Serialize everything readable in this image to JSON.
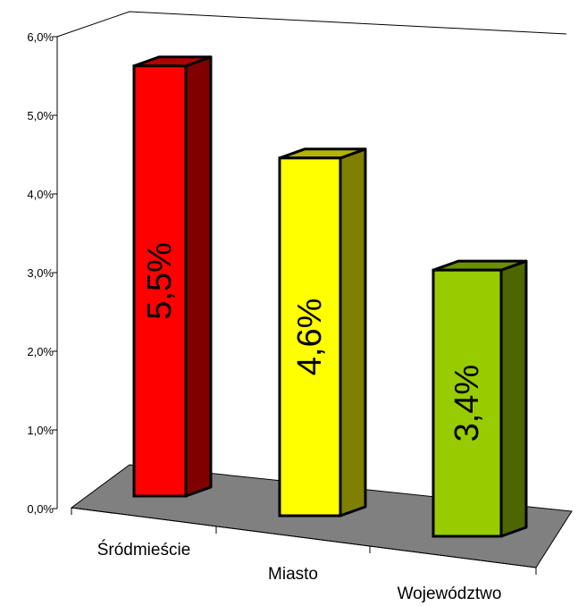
{
  "chart_data": {
    "type": "bar",
    "categories": [
      "Śródmieście",
      "Miasto",
      "Województwo"
    ],
    "values": [
      5.5,
      4.6,
      3.4
    ],
    "data_labels": [
      "5,5%",
      "4,6%",
      "3,4%"
    ],
    "yticks": [
      "0,0%",
      "1,0%",
      "2,0%",
      "3,0%",
      "4,0%",
      "5,0%",
      "6,0%"
    ],
    "ylim": [
      0,
      6
    ],
    "grid": false,
    "legend": "none",
    "title": "",
    "xlabel": "",
    "ylabel": ""
  },
  "colors": {
    "bars_front": [
      "#ff0000",
      "#ffff00",
      "#99cc00"
    ],
    "bars_side": [
      "#800000",
      "#808000",
      "#4d6600"
    ],
    "bars_top": [
      "#b30000",
      "#b3b300",
      "#6b8f00"
    ],
    "floor": "#808080"
  }
}
